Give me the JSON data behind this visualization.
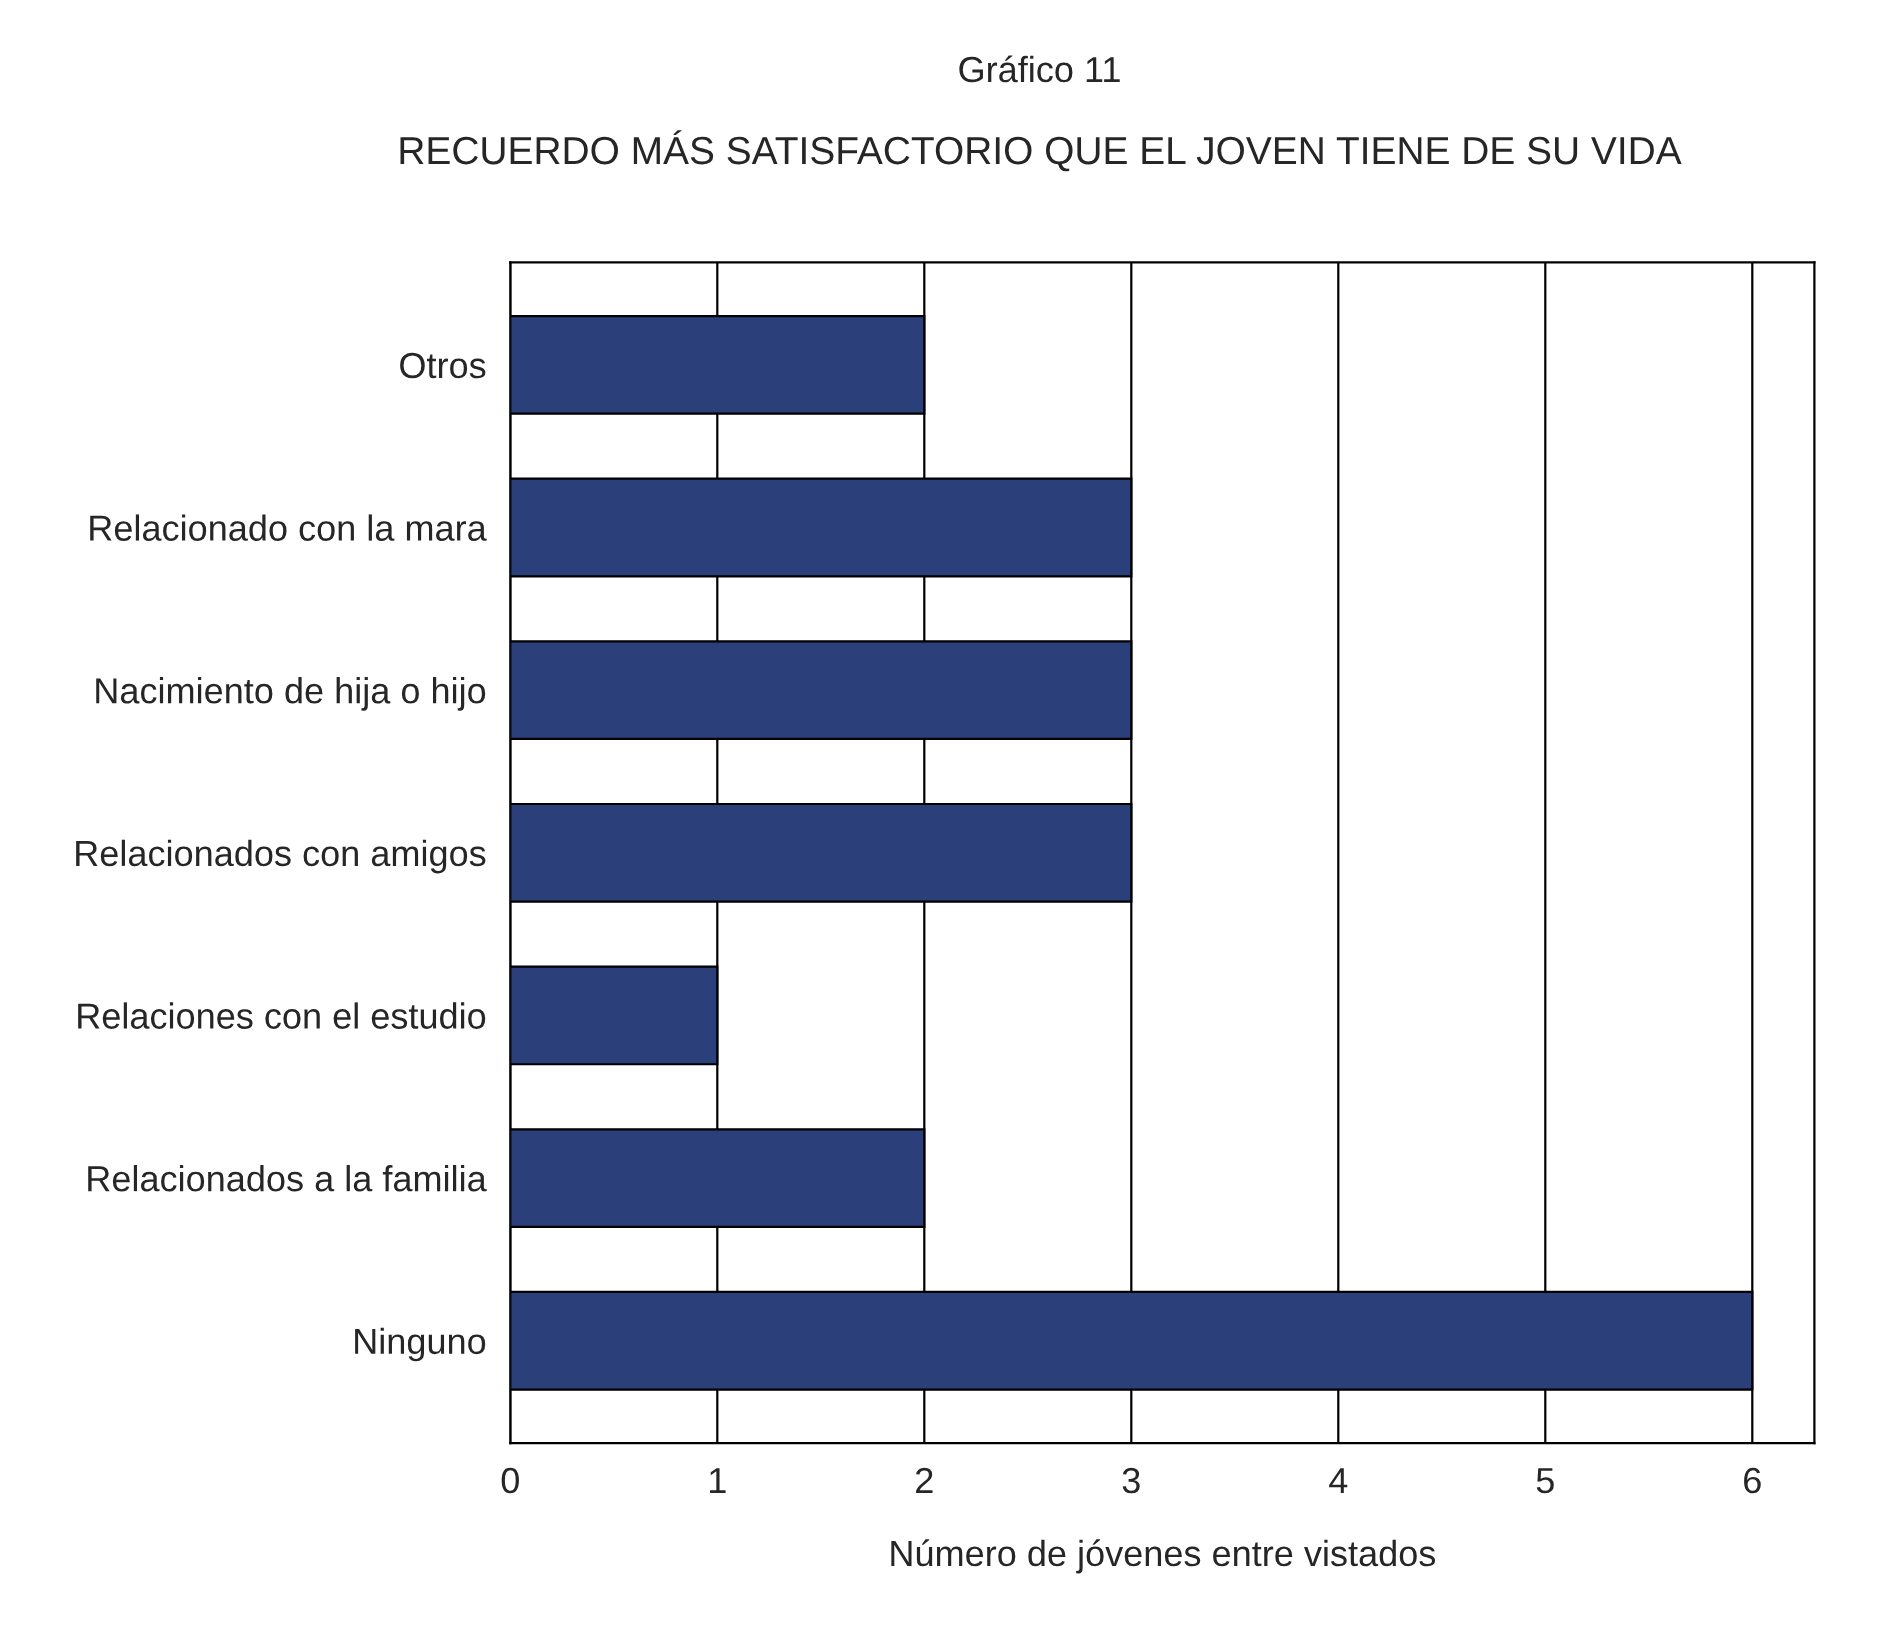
{
  "chart_data": {
    "type": "bar",
    "orientation": "horizontal",
    "title": "Gráfico 11",
    "subtitle": "RECUERDO MÁS SATISFACTORIO QUE EL JOVEN TIENE DE SU VIDA",
    "xlabel": "Número de jóvenes entre vistados",
    "categories": [
      "Otros",
      "Relacionado con la mara",
      "Nacimiento de hija o hijo",
      "Relacionados con amigos",
      "Relaciones con el estudio",
      "Relacionados a la familia",
      "Ninguno"
    ],
    "values": [
      2,
      3,
      3,
      3,
      1,
      2,
      6
    ],
    "color": "#2b3f7a",
    "xlim": [
      0,
      6.3
    ],
    "xticks": [
      0,
      1,
      2,
      3,
      4,
      5,
      6
    ],
    "grid": "x"
  }
}
